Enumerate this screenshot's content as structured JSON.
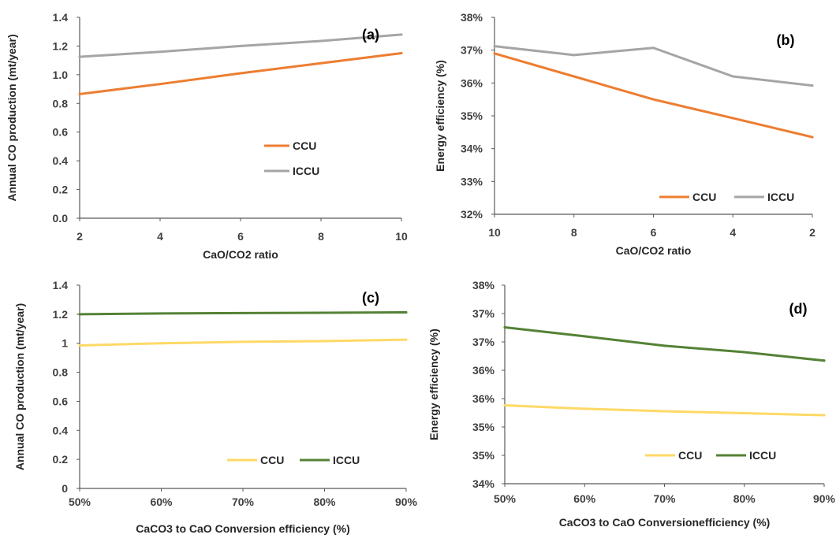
{
  "colors": {
    "ccu_ab": "#ED7D31",
    "icu_ab": "#A5A5A5",
    "ccu_cd": "#FFD966",
    "icu_cd": "#548235",
    "axis": "#595959"
  },
  "chart_data": [
    {
      "type": "line",
      "panel_label": "(a)",
      "xlabel": "CaO/CO2 ratio",
      "ylabel": "Annual CO production (mt/year)",
      "x": [
        2,
        4,
        6,
        8,
        10
      ],
      "x_tick_labels": [
        "2",
        "4",
        "6",
        "8",
        "10"
      ],
      "xlim": [
        2,
        10
      ],
      "ylim": [
        0,
        1.4
      ],
      "y_tick_labels": [
        "0.0",
        "0.2",
        "0.4",
        "0.6",
        "0.8",
        "1.0",
        "1.2",
        "1.4"
      ],
      "grid": false,
      "legend_placement": "center",
      "series": [
        {
          "name": "CCU",
          "color": "#ED7D31",
          "values": [
            0.865,
            0.935,
            1.01,
            1.08,
            1.15
          ]
        },
        {
          "name": "ICCU",
          "color": "#A5A5A5",
          "values": [
            1.125,
            1.16,
            1.2,
            1.235,
            1.28
          ]
        }
      ]
    },
    {
      "type": "line",
      "panel_label": "(b)",
      "xlabel": "CaO/CO2 ratio",
      "ylabel": "Energy efficiency (%)",
      "x": [
        10,
        8,
        6,
        4,
        2
      ],
      "x_tick_labels": [
        "10",
        "8",
        "6",
        "4",
        "2"
      ],
      "xlim": [
        10,
        2
      ],
      "ylim": [
        32,
        38
      ],
      "y_tick_labels": [
        "32%",
        "33%",
        "34%",
        "35%",
        "36%",
        "37%",
        "38%"
      ],
      "grid": false,
      "legend_placement": "bottom-right",
      "series": [
        {
          "name": "CCU",
          "color": "#ED7D31",
          "values": [
            36.9,
            36.2,
            35.5,
            34.93,
            34.35
          ]
        },
        {
          "name": "ICCU",
          "color": "#A5A5A5",
          "values": [
            37.12,
            36.85,
            37.07,
            36.2,
            35.92
          ]
        }
      ]
    },
    {
      "type": "line",
      "panel_label": "(c)",
      "xlabel": "CaCO3 to CaO Conversion efficiency (%)",
      "ylabel": "Annual CO production (mt/year)",
      "x": [
        50,
        60,
        70,
        80,
        90
      ],
      "x_tick_labels": [
        "50%",
        "60%",
        "70%",
        "80%",
        "90%"
      ],
      "xlim": [
        50,
        90
      ],
      "ylim": [
        0,
        1.4
      ],
      "y_tick_labels": [
        "0",
        "0.2",
        "0.4",
        "0.6",
        "0.8",
        "1",
        "1.2",
        "1.4"
      ],
      "grid": false,
      "legend_placement": "bottom-right",
      "series": [
        {
          "name": "CCU",
          "color": "#FFD966",
          "values": [
            0.985,
            1.0,
            1.01,
            1.015,
            1.025
          ]
        },
        {
          "name": "ICCU",
          "color": "#548235",
          "values": [
            1.2,
            1.205,
            1.208,
            1.21,
            1.213
          ]
        }
      ]
    },
    {
      "type": "line",
      "panel_label": "(d)",
      "xlabel": "CaCO3 to CaO Conversionefficiency (%)",
      "ylabel": "Energy efficiency (%)",
      "x": [
        50,
        60,
        70,
        80,
        90
      ],
      "x_tick_labels": [
        "50%",
        "60%",
        "70%",
        "80%",
        "90%"
      ],
      "xlim": [
        50,
        90
      ],
      "ylim": [
        34,
        38
      ],
      "y_tick_labels": [
        "34%",
        "35%",
        "35%",
        "36%",
        "36%",
        "37%",
        "37%",
        "38%"
      ],
      "grid": false,
      "legend_placement": "bottom-right",
      "series": [
        {
          "name": "CCU",
          "color": "#FFD966",
          "values": [
            35.58,
            35.51,
            35.46,
            35.42,
            35.38
          ]
        },
        {
          "name": "ICCU",
          "color": "#548235",
          "values": [
            37.15,
            36.97,
            36.78,
            36.65,
            36.48
          ]
        }
      ]
    }
  ]
}
